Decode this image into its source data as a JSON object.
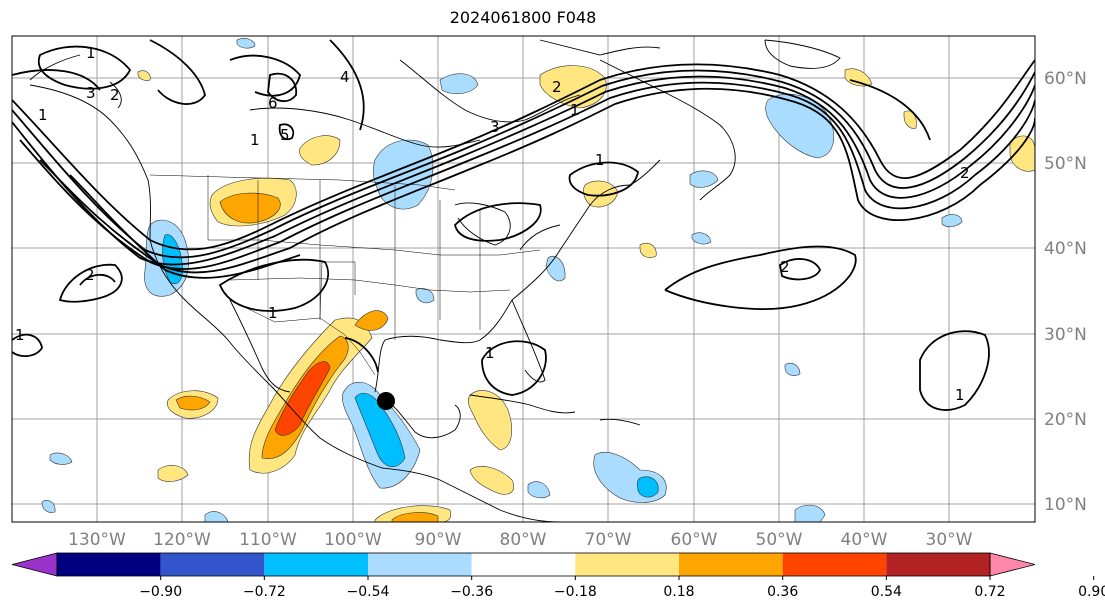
{
  "title": "2024061800 F048",
  "longitude_labels": [
    "130°W",
    "120°W",
    "110°W",
    "100°W",
    "90°W",
    "80°W",
    "70°W",
    "60°W",
    "50°W",
    "40°W",
    "30°W"
  ],
  "latitude_labels": [
    "60°N",
    "50°N",
    "40°N",
    "30°N",
    "20°N",
    "10°N"
  ],
  "colorbar": {
    "colors": [
      "#9933cc",
      "#000080",
      "#3355cc",
      "#00bfff",
      "#aadcff",
      "#ffffff",
      "#ffe680",
      "#ffa500",
      "#ff4400",
      "#b22222",
      "#ff88aa"
    ],
    "tick_labels": [
      "−0.90",
      "−0.72",
      "−0.54",
      "−0.36",
      "−0.18",
      "0.18",
      "0.36",
      "0.54",
      "0.72",
      "0.90"
    ]
  },
  "contour_labels": [
    "1",
    "2",
    "3",
    "4",
    "5",
    "6",
    "1",
    "2",
    "3",
    "1",
    "2",
    "1",
    "1",
    "1",
    "1",
    "1",
    "2",
    "2",
    "1"
  ],
  "storm_marker": "tropical-system-center"
}
